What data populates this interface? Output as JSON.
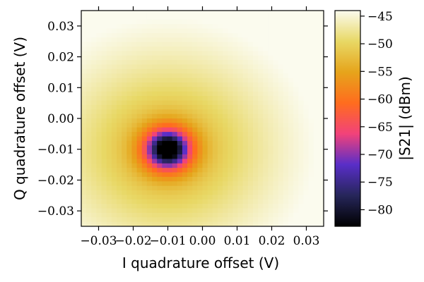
{
  "chart_data": {
    "type": "heatmap",
    "xlabel": "I quadrature offset (V)",
    "ylabel": "Q quadrature offset (V)",
    "colorbar_label": "|S21| (dBm)",
    "xlim": [
      -0.035,
      0.035
    ],
    "ylim": [
      -0.035,
      0.035
    ],
    "x_ticks": [
      -0.03,
      -0.02,
      -0.01,
      0.0,
      0.01,
      0.02,
      0.03
    ],
    "x_tick_labels": [
      "−0.03",
      "−0.02",
      "−0.01",
      "0.00",
      "0.01",
      "0.02",
      "0.03"
    ],
    "y_ticks": [
      0.03,
      0.02,
      0.01,
      0.0,
      -0.01,
      -0.02,
      -0.03
    ],
    "y_tick_labels": [
      "0.03",
      "0.02",
      "0.01",
      "0.00",
      "−0.01",
      "−0.02",
      "−0.03"
    ],
    "colorbar_range": [
      -83,
      -44
    ],
    "colorbar_ticks": [
      -45,
      -50,
      -55,
      -60,
      -65,
      -70,
      -75,
      -80
    ],
    "colorbar_tick_labels": [
      "−45",
      "−50",
      "−55",
      "−60",
      "−65",
      "−70",
      "−75",
      "−80"
    ],
    "minimum": {
      "x": -0.01,
      "y": -0.01,
      "value": -83
    },
    "max_value_corner": {
      "x": 0.035,
      "y": 0.035,
      "value": -44.5
    },
    "grid_resolution": 48,
    "colormap": "CMRmap",
    "grid": false
  }
}
